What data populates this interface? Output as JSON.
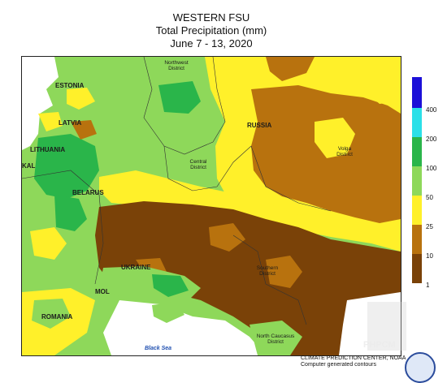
{
  "title": {
    "region": "WESTERN FSU",
    "variable": "Total Precipitation (mm)",
    "period": "June 7 - 13, 2020"
  },
  "map_labels": {
    "estonia": "ESTONIA",
    "latvia": "LATVIA",
    "lithuania": "LITHUANIA",
    "kal": "KAL",
    "belarus": "BELARUS",
    "russia": "RUSSIA",
    "ukraine": "UKRAINE",
    "mol": "MOL",
    "romania": "ROMANIA",
    "black_sea": "Black Sea",
    "northwest_district": "Northwest District",
    "central_district": "Central District",
    "volga_district": "Volga District",
    "southern_district": "Southern District",
    "north_caucasus_district": "North Caucasus District"
  },
  "legend": {
    "labels": [
      "400",
      "200",
      "100",
      "50",
      "25",
      "10",
      "1"
    ],
    "colors": [
      "#1c10d8",
      "#2be0e8",
      "#2ab54a",
      "#8ed85a",
      "#fff02a",
      "#b8720e",
      "#7a4208"
    ],
    "top_color": "#1c10d8"
  },
  "credit": {
    "line1": "CLIMATE PREDICTION CENTER, NOAA",
    "line2": "Computer generated contours"
  },
  "watermark": "PHPCM"
}
